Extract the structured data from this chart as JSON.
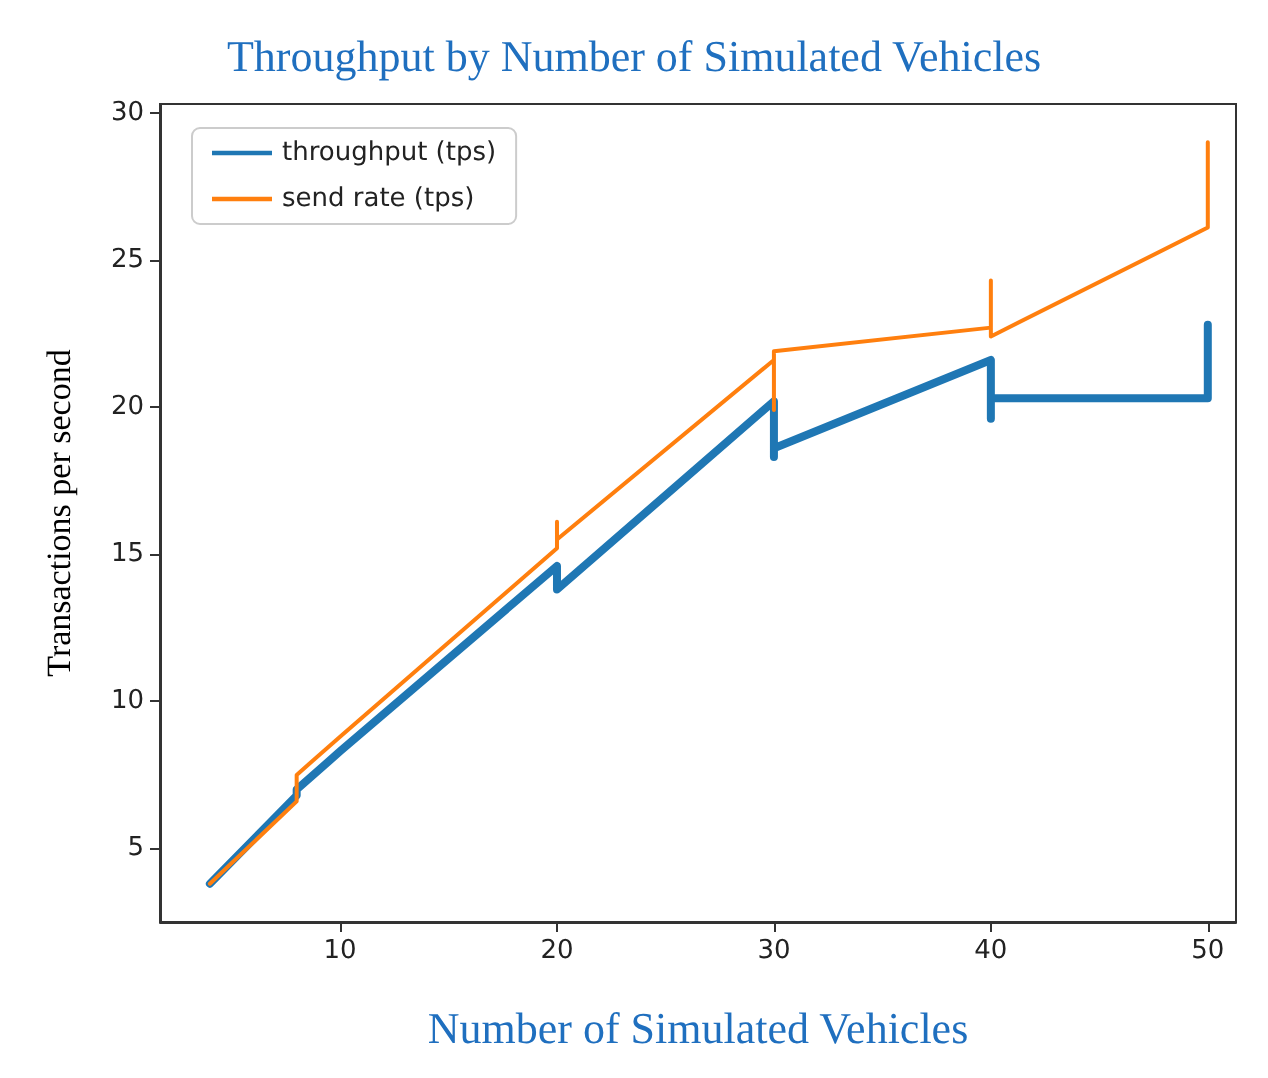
{
  "chart_data": {
    "type": "line",
    "title": "Throughput by Number of Simulated Vehicles",
    "xlabel": "Number of Simulated Vehicles",
    "ylabel": "Transactions per second",
    "series": [
      {
        "name": "throughput (tps)",
        "color": "#1f77b4",
        "x": [
          4,
          8,
          8,
          10,
          20,
          20,
          30,
          30,
          30,
          40,
          40,
          40,
          50,
          50
        ],
        "values": [
          3.8,
          6.8,
          7.0,
          8.3,
          14.6,
          13.8,
          20.2,
          18.3,
          18.6,
          21.6,
          19.6,
          20.3,
          20.3,
          22.8
        ]
      },
      {
        "name": "send rate (tps)",
        "color": "#ff7f0e",
        "x": [
          4,
          8,
          8,
          10,
          20,
          20,
          20,
          30,
          30,
          30,
          40,
          40,
          40,
          50,
          50
        ],
        "values": [
          3.8,
          6.6,
          7.5,
          8.8,
          15.2,
          16.1,
          15.5,
          21.6,
          19.9,
          21.9,
          22.7,
          24.3,
          22.4,
          26.1,
          29.0
        ]
      }
    ],
    "xlim": [
      1.7,
      51.3
    ],
    "xticks": [
      10,
      20,
      30,
      40,
      50
    ],
    "ylim": [
      2.5,
      30.3
    ],
    "yticks": [
      5,
      10,
      15,
      20,
      25,
      30
    ],
    "grid": false,
    "legend": "top left",
    "marker": "none",
    "line_style": "solid"
  }
}
